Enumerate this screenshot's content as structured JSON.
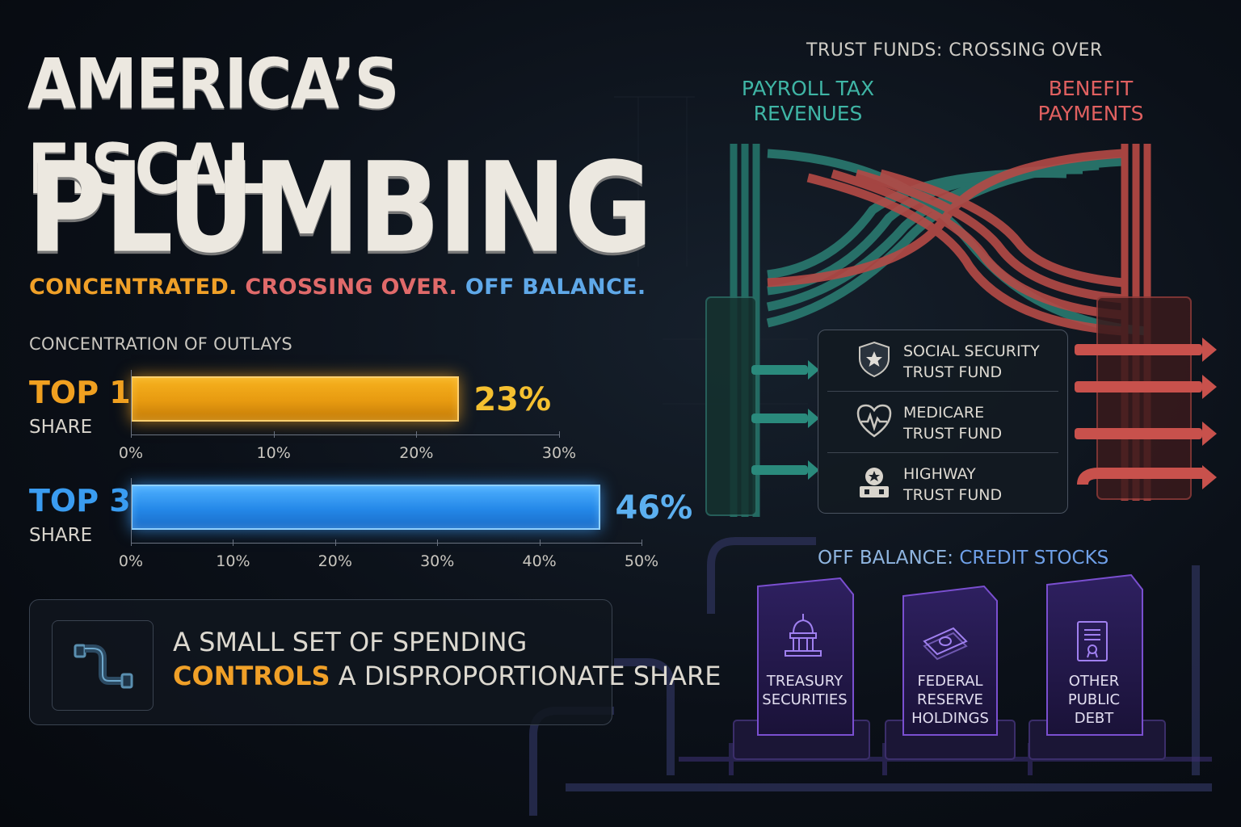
{
  "title": {
    "line1": "AMERICA’S FISCAL",
    "line2": "PLUMBING",
    "tagline": {
      "part1": "CONCENTRATED.",
      "part2": "CROSSING OVER.",
      "part3": "OFF BALANCE."
    }
  },
  "chart_data": {
    "type": "bar",
    "title": "CONCENTRATION OF OUTLAYS",
    "bars": [
      {
        "label": "TOP 1",
        "sublabel": "SHARE",
        "value": 23,
        "value_label": "23%",
        "xlim": [
          0,
          30
        ],
        "ticks": [
          "0%",
          "10%",
          "20%",
          "30%"
        ],
        "color": "#f0a020"
      },
      {
        "label": "TOP 3",
        "sublabel": "SHARE",
        "value": 46,
        "value_label": "46%",
        "xlim": [
          0,
          50
        ],
        "ticks": [
          "0%",
          "10%",
          "20%",
          "30%",
          "40%",
          "50%"
        ],
        "color": "#3a9cf0"
      }
    ],
    "grid": false
  },
  "callout": {
    "line1": "A SMALL SET OF SPENDING",
    "line2_highlight": "CONTROLS",
    "line2_rest": "A DISPROPORTIONATE SHARE",
    "icon": "pipe-icon"
  },
  "trust_funds": {
    "title": "TRUST FUNDS: CROSSING OVER",
    "left_label_line1": "PAYROLL TAX",
    "left_label_line2": "REVENUES",
    "right_label_line1": "BENEFIT",
    "right_label_line2": "PAYMENTS",
    "funds": [
      {
        "line1": "SOCIAL SECURITY",
        "line2": "TRUST FUND",
        "icon": "shield-star-icon"
      },
      {
        "line1": "MEDICARE",
        "line2": "TRUST FUND",
        "icon": "heart-pulse-icon"
      },
      {
        "line1": "HIGHWAY",
        "line2": "TRUST FUND",
        "icon": "highway-icon"
      }
    ],
    "colors": {
      "revenue": "#2f8f82",
      "payment": "#c8514c"
    }
  },
  "off_balance": {
    "title_part1": "OFF BALANCE:",
    "title_part2": "CREDIT STOCKS",
    "blocks": [
      {
        "line1": "TREASURY",
        "line2": "SECURITIES",
        "line3": "",
        "icon": "capitol-icon"
      },
      {
        "line1": "FEDERAL",
        "line2": "RESERVE",
        "line3": "HOLDINGS",
        "icon": "money-icon"
      },
      {
        "line1": "OTHER PUBLIC",
        "line2": "DEBT",
        "line3": "",
        "icon": "document-icon"
      }
    ],
    "color": "#7a4fd0"
  }
}
